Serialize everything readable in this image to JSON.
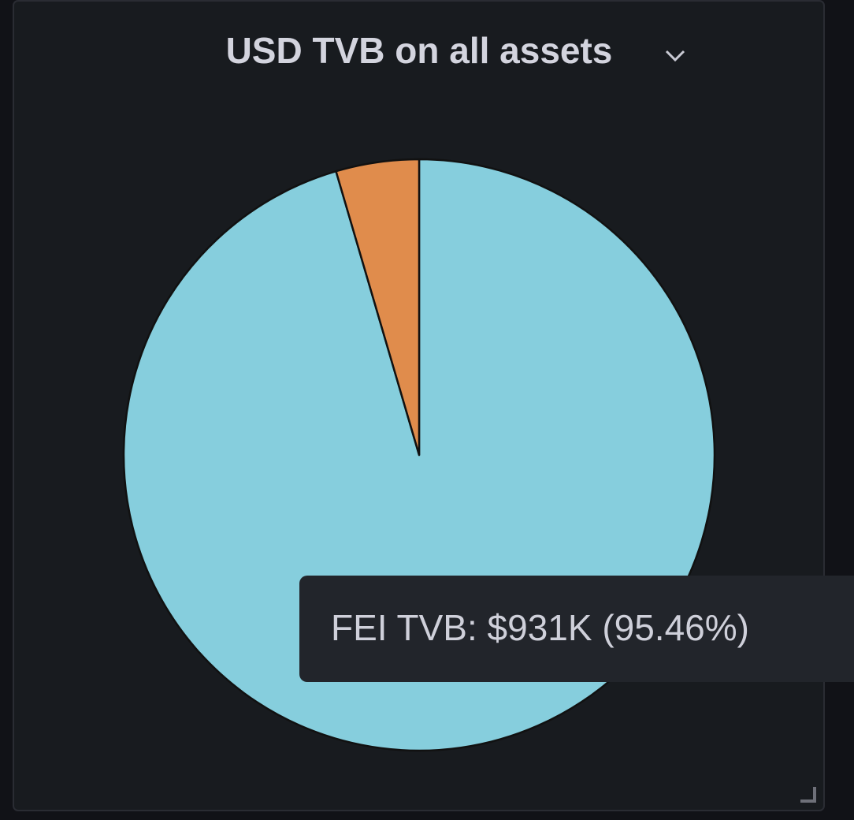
{
  "chart_data": {
    "type": "pie",
    "title": "USD TVB on all assets",
    "categories": [
      "FEI TVB",
      null
    ],
    "values": [
      95.46,
      4.54
    ],
    "colors": [
      "#86cedd",
      "#e08c4c"
    ],
    "tooltip": "FEI TVB: $931K (95.46%)"
  }
}
